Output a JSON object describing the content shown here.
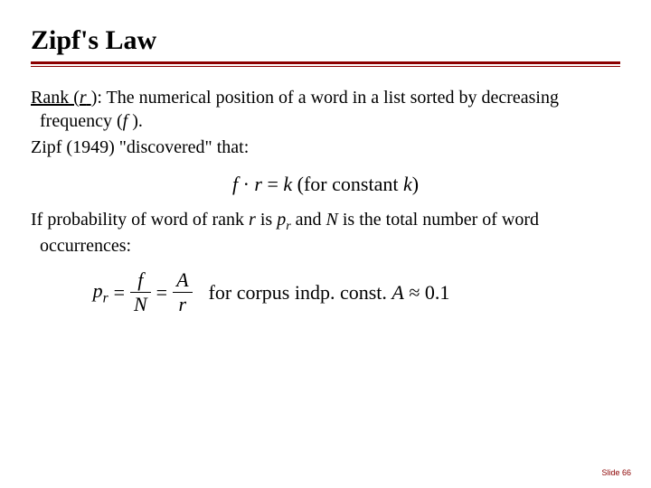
{
  "slide": {
    "title": "Zipf's Law",
    "underline_color_dark": "#8b0000",
    "underline_color_light": "#8b0000",
    "body_para1_prefix": "Rank (",
    "body_para1_rank_var": "r",
    "body_para1_mid": "): The numerical position of a word in a list sorted by decreasing frequency (",
    "body_para1_freq_var": "f ",
    "body_para1_suffix": ").",
    "body_para2": "Zipf (1949) \"discovered\" that:",
    "formula1_f": "f",
    "formula1_dot": " · ",
    "formula1_r": "r",
    "formula1_eq": " = ",
    "formula1_k": "k",
    "formula1_paren": "  (for constant ",
    "formula1_k2": "k",
    "formula1_close": ")",
    "body_para3_a": "If probability of word of rank ",
    "body_para3_r": "r",
    "body_para3_b": " is ",
    "body_para3_p": "p",
    "body_para3_rsub": "r",
    "body_para3_c": " and ",
    "body_para3_N": "N",
    "body_para3_d": " is the total number of word occurrences:",
    "formula2_p": "p",
    "formula2_rsub": "r",
    "formula2_eq": "=",
    "formula2_num1": "f",
    "formula2_den1": "N",
    "formula2_num2": "A",
    "formula2_den2": "r",
    "formula2_text_a": "for corpus indp. const. ",
    "formula2_A": "A",
    "formula2_approx": " ≈ 0.1",
    "footer": "Slide 66",
    "footer_color": "#8b0000"
  }
}
